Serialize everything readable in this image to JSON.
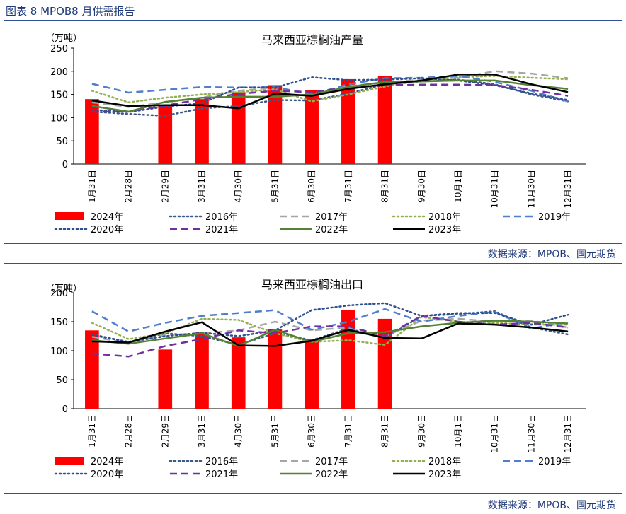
{
  "header": {
    "title": "图表 8 MPOB8 月供需报告"
  },
  "sources": [
    "数据来源：MPOB、国元期货",
    "数据来源：MPOB、国元期货"
  ],
  "legend_styles": [
    {
      "name": "2024年",
      "color": "#ff0000",
      "dash": "",
      "kind": "bar"
    },
    {
      "name": "2016年",
      "color": "#3b5a88",
      "dash": "2,4"
    },
    {
      "name": "2017年",
      "color": "#a6a6a6",
      "dash": "10,6"
    },
    {
      "name": "2018年",
      "color": "#92b050",
      "dash": "2,4"
    },
    {
      "name": "2019年",
      "color": "#4f7fcc",
      "dash": "10,6"
    },
    {
      "name": "2020年",
      "color": "#2e4f8f",
      "dash": "2,4"
    },
    {
      "name": "2021年",
      "color": "#7030a0",
      "dash": "10,6"
    },
    {
      "name": "2022年",
      "color": "#548235",
      "dash": ""
    },
    {
      "name": "2023年",
      "color": "#000000",
      "dash": ""
    }
  ],
  "chart_data": [
    {
      "type": "bar",
      "title": "马来西亚棕榈油产量",
      "unit": "（万吨）",
      "ylim": [
        0,
        250
      ],
      "yticks": [
        0,
        50,
        100,
        150,
        200,
        250
      ],
      "categories": [
        "1月31日",
        "2月28日",
        "2月29日",
        "3月31日",
        "4月30日",
        "5月31日",
        "6月30日",
        "7月31日",
        "8月31日",
        "9月30日",
        "10月1日",
        "10月31日",
        "11月30日",
        "12月31日"
      ],
      "series": [
        {
          "name": "2024年",
          "values": [
            140,
            null,
            127,
            140,
            155,
            170,
            160,
            183,
            190,
            null,
            null,
            null,
            null,
            null
          ]
        },
        {
          "name": "2016年",
          "values": [
            113,
            108,
            104,
            120,
            125,
            138,
            137,
            152,
            172,
            178,
            182,
            172,
            150,
            135
          ]
        },
        {
          "name": "2017年",
          "values": [
            133,
            123,
            133,
            143,
            158,
            165,
            152,
            168,
            176,
            182,
            186,
            200,
            195,
            185
          ]
        },
        {
          "name": "2018年",
          "values": [
            158,
            133,
            143,
            150,
            155,
            161,
            135,
            150,
            167,
            180,
            187,
            190,
            186,
            183
          ]
        },
        {
          "name": "2019年",
          "values": [
            173,
            154,
            160,
            166,
            165,
            166,
            150,
            172,
            185,
            186,
            190,
            177,
            158,
            135
          ]
        },
        {
          "name": "2020年",
          "values": [
            117,
            112,
            124,
            131,
            165,
            165,
            187,
            181,
            182,
            185,
            180,
            170,
            152,
            138
          ]
        },
        {
          "name": "2021年",
          "values": [
            113,
            113,
            126,
            140,
            151,
            158,
            155,
            165,
            170,
            171,
            171,
            170,
            160,
            147
          ]
        },
        {
          "name": "2022年",
          "values": [
            125,
            113,
            134,
            143,
            145,
            145,
            150,
            166,
            177,
            178,
            180,
            180,
            170,
            162
          ]
        },
        {
          "name": "2023年",
          "values": [
            137,
            125,
            127,
            127,
            120,
            152,
            147,
            162,
            172,
            180,
            193,
            193,
            172,
            155
          ]
        }
      ]
    },
    {
      "type": "bar",
      "title": "马来西亚棕榈油出口",
      "unit": "（万吨）",
      "ylim": [
        0,
        200
      ],
      "yticks": [
        0,
        50,
        100,
        150,
        200
      ],
      "categories": [
        "1月31日",
        "2月28日",
        "2月29日",
        "3月31日",
        "4月30日",
        "5月31日",
        "6月30日",
        "7月31日",
        "8月31日",
        "9月30日",
        "10月1日",
        "10月31日",
        "11月30日",
        "12月31日"
      ],
      "series": [
        {
          "name": "2024年",
          "values": [
            135,
            null,
            102,
            132,
            123,
            137,
            120,
            170,
            155,
            null,
            null,
            null,
            null,
            null
          ]
        },
        {
          "name": "2016年",
          "values": [
            128,
            115,
            130,
            125,
            110,
            130,
            118,
            138,
            122,
            160,
            163,
            168,
            140,
            128
          ]
        },
        {
          "name": "2017年",
          "values": [
            124,
            113,
            127,
            130,
            135,
            150,
            135,
            140,
            125,
            152,
            155,
            150,
            152,
            140
          ]
        },
        {
          "name": "2018年",
          "values": [
            148,
            120,
            130,
            155,
            153,
            130,
            115,
            118,
            110,
            158,
            150,
            148,
            145,
            145
          ]
        },
        {
          "name": "2019年",
          "values": [
            168,
            133,
            148,
            160,
            165,
            170,
            136,
            150,
            172,
            150,
            160,
            167,
            138,
            150
          ]
        },
        {
          "name": "2020年",
          "values": [
            127,
            115,
            125,
            131,
            125,
            135,
            170,
            178,
            182,
            160,
            165,
            165,
            145,
            162
          ]
        },
        {
          "name": "2021年",
          "values": [
            95,
            90,
            108,
            120,
            135,
            130,
            142,
            142,
            125,
            160,
            150,
            145,
            148,
            140
          ]
        },
        {
          "name": "2022年",
          "values": [
            118,
            112,
            121,
            130,
            108,
            136,
            115,
            130,
            132,
            142,
            148,
            152,
            150,
            147
          ]
        },
        {
          "name": "2023年",
          "values": [
            116,
            114,
            133,
            149,
            109,
            108,
            117,
            136,
            122,
            121,
            147,
            145,
            140,
            133
          ]
        }
      ]
    }
  ]
}
